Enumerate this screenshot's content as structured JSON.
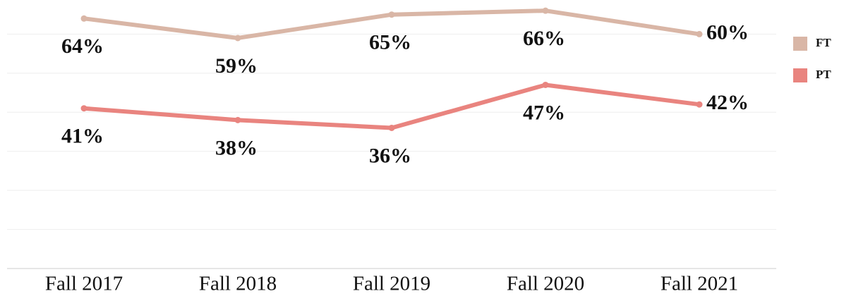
{
  "chart_data": {
    "type": "line",
    "categories": [
      "Fall 2017",
      "Fall 2018",
      "Fall 2019",
      "Fall 2020",
      "Fall 2021"
    ],
    "series": [
      {
        "name": "FT",
        "color": "#d9b6a6",
        "values": [
          64,
          59,
          65,
          66,
          60
        ],
        "value_labels": [
          "64%",
          "59%",
          "65%",
          "66%",
          "60%"
        ]
      },
      {
        "name": "PT",
        "color": "#e9847f",
        "values": [
          41,
          38,
          36,
          47,
          42
        ],
        "value_labels": [
          "41%",
          "38%",
          "36%",
          "47%",
          "42%"
        ]
      }
    ],
    "ylim": [
      0,
      70
    ],
    "yticks": [
      0,
      10,
      20,
      30,
      40,
      50,
      60
    ],
    "grid": true,
    "legend": "right"
  }
}
